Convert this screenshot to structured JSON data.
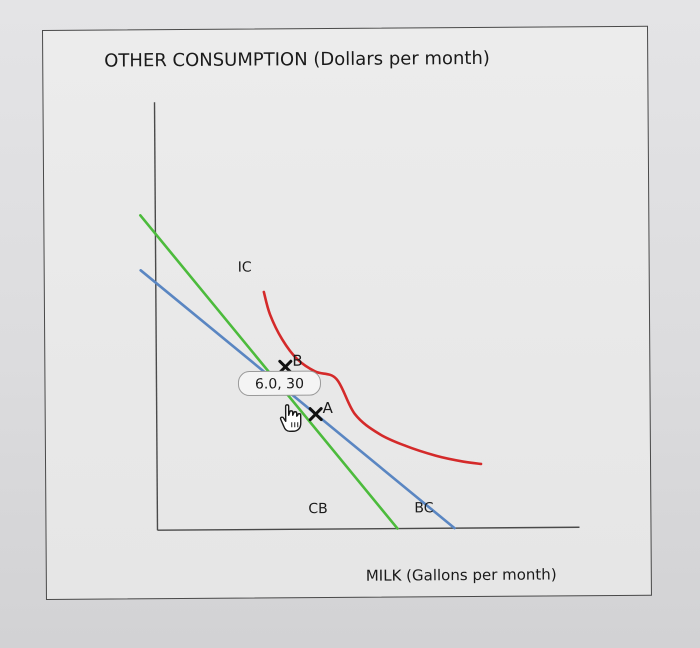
{
  "chart_data": {
    "type": "line",
    "title": "",
    "ylabel": "OTHER CONSUMPTION (Dollars per month)",
    "xlabel": "MILK (Gallons per month)",
    "xlim": [
      0,
      12
    ],
    "ylim": [
      0,
      60
    ],
    "grid": false,
    "series": [
      {
        "name": "IC",
        "color": "#d42a2a",
        "kind": "curve",
        "x": [
          3.6,
          3.8,
          4.2,
          4.7,
          5.3,
          6.0,
          6.6,
          7.4,
          8.3,
          9.3,
          10.2,
          10.8
        ],
        "y": [
          47.5,
          43,
          38,
          34,
          31.5,
          30,
          23,
          19,
          16.5,
          14.5,
          13.3,
          12.8
        ]
      },
      {
        "name": "CB",
        "color": "#4cbb3c",
        "kind": "line",
        "x": [
          -0.5,
          8.0
        ],
        "y": [
          63,
          0
        ]
      },
      {
        "name": "BC",
        "color": "#5a86c2",
        "kind": "line",
        "x": [
          -0.5,
          9.9
        ],
        "y": [
          52,
          0
        ]
      }
    ],
    "points": [
      {
        "name": "B",
        "x": 4.3,
        "y": 32.5
      },
      {
        "name": "A",
        "x": 5.3,
        "y": 23.0
      }
    ],
    "tooltip": "6.0, 30",
    "curve_labels": {
      "IC": "IC",
      "CB": "CB",
      "BC": "BC"
    }
  },
  "colors": {
    "ic": "#d42a2a",
    "cb": "#4cbb3c",
    "bc": "#5a86c2",
    "axis": "#4a4a4a"
  },
  "icons": {
    "cursor": "hand-pointer-icon"
  }
}
